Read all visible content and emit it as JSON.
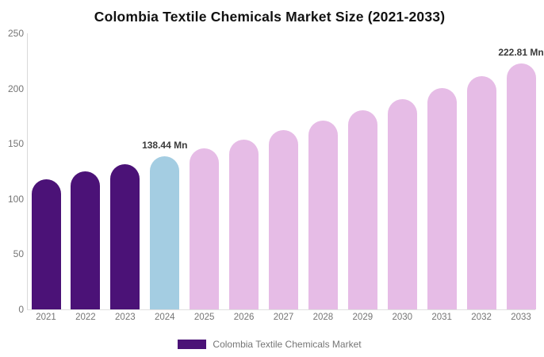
{
  "title": "Colombia Textile Chemicals Market Size (2021-2033)",
  "legend": {
    "label": "Colombia Textile Chemicals Market"
  },
  "colors": {
    "historical_bar": "#4B1277",
    "highlight_bar": "#A4CDE2",
    "forecast_bar": "#E6BCE6",
    "title_text": "#111111",
    "axis_text": "#757575",
    "axis_line": "#D9D9D9",
    "baseline_line": "#E0E0E0",
    "annotation_text": "#3A3A3A"
  },
  "chart_data": {
    "type": "bar",
    "title": "Colombia Textile Chemicals Market Size (2021-2033)",
    "categories": [
      "2021",
      "2022",
      "2023",
      "2024",
      "2025",
      "2026",
      "2027",
      "2028",
      "2029",
      "2030",
      "2031",
      "2032",
      "2033"
    ],
    "values": [
      117.6,
      124.8,
      131.3,
      138.44,
      145.9,
      153.9,
      162.2,
      171.1,
      180.3,
      190.1,
      200.4,
      211.3,
      222.81
    ],
    "unit": "Mn",
    "series": [
      {
        "name": "Colombia Textile Chemicals Market"
      }
    ],
    "bar_roles": [
      "historical",
      "historical",
      "historical",
      "highlight",
      "forecast",
      "forecast",
      "forecast",
      "forecast",
      "forecast",
      "forecast",
      "forecast",
      "forecast",
      "forecast"
    ],
    "data_labels": [
      {
        "category": "2024",
        "text": "138.44 Mn"
      },
      {
        "category": "2033",
        "text": "222.81 Mn"
      }
    ],
    "xlabel": "",
    "ylabel": "",
    "ylim": [
      0,
      250
    ],
    "yticks": [
      0,
      50,
      100,
      150,
      200,
      250
    ],
    "grid": false,
    "legend_position": "bottom"
  }
}
